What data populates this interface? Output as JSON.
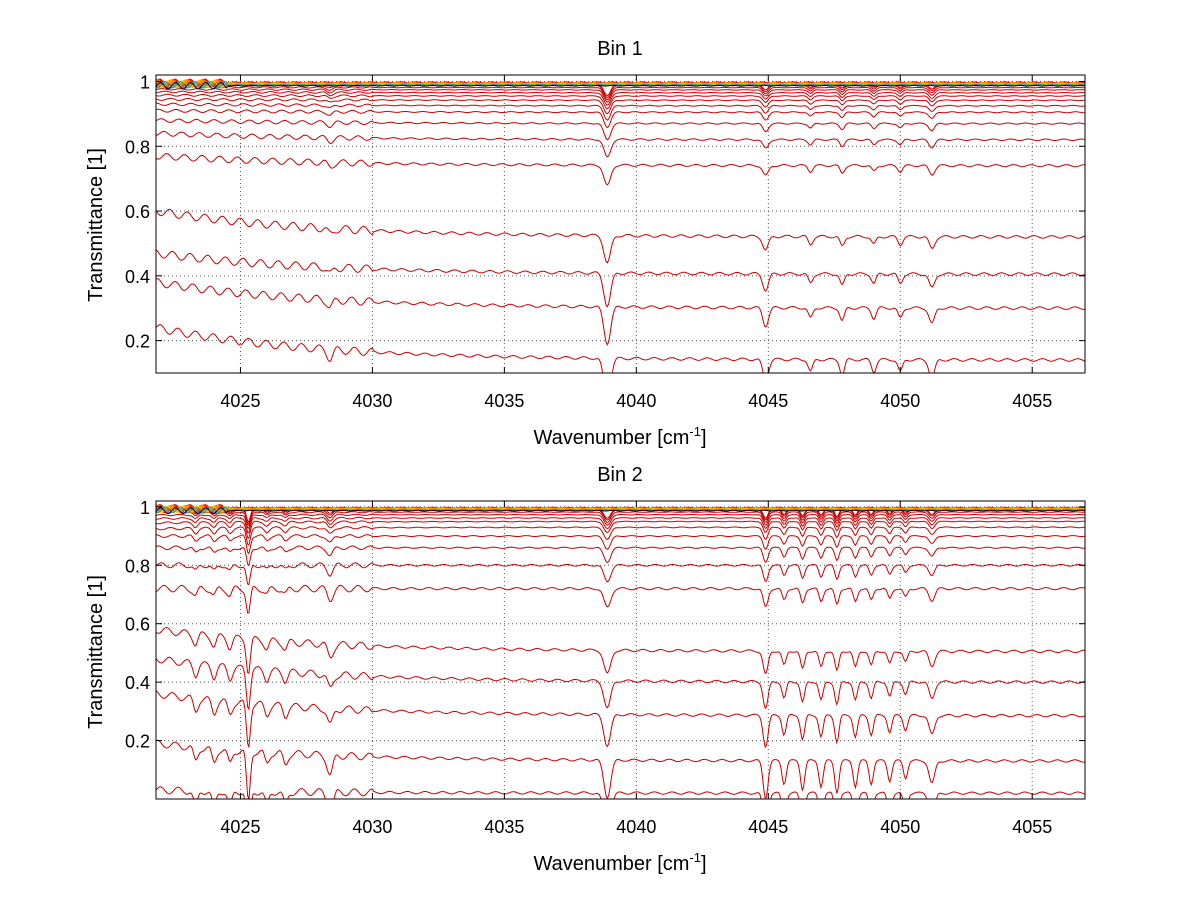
{
  "chart_data": [
    {
      "type": "line",
      "title": "Bin 1",
      "xlabel": "Wavenumber [cm",
      "xlabel_sup": "-1",
      "xlabel_end": "]",
      "ylabel": "Transmittance [1]",
      "xlim": [
        4021.8,
        4057.0
      ],
      "ylim": [
        0.1,
        1.02
      ],
      "xticks": [
        4025,
        4030,
        4035,
        4040,
        4045,
        4050,
        4055
      ],
      "xtick_labels": [
        "4025",
        "4030",
        "4035",
        "4040",
        "4045",
        "4050",
        "4055"
      ],
      "yticks": [
        0.2,
        0.4,
        0.6,
        0.8,
        1.0
      ],
      "ytick_labels": [
        "0.2",
        "0.4",
        "0.6",
        "0.8",
        "1"
      ],
      "grid": true,
      "grid_style": "dotted",
      "series_color": "#cc0000",
      "top_band_colors": [
        "#ff0000",
        "#ff6600",
        "#ff9900",
        "#ffcc00",
        "#33aa33",
        "#3399ff",
        "#000000"
      ],
      "series": [
        {
          "start": 0.24,
          "end": 0.14
        },
        {
          "start": 0.38,
          "end": 0.3
        },
        {
          "start": 0.47,
          "end": 0.405
        },
        {
          "start": 0.6,
          "end": 0.52
        },
        {
          "start": 0.77,
          "end": 0.74
        },
        {
          "start": 0.84,
          "end": 0.82
        },
        {
          "start": 0.88,
          "end": 0.87
        },
        {
          "start": 0.91,
          "end": 0.905
        },
        {
          "start": 0.93,
          "end": 0.925
        },
        {
          "start": 0.945,
          "end": 0.942
        },
        {
          "start": 0.958,
          "end": 0.955
        },
        {
          "start": 0.968,
          "end": 0.965
        },
        {
          "start": 0.976,
          "end": 0.974
        },
        {
          "start": 0.983,
          "end": 0.981
        },
        {
          "start": 0.989,
          "end": 0.987
        },
        {
          "start": 0.994,
          "end": 0.992
        }
      ],
      "absorption_lines": [
        {
          "x": 4028.4,
          "depth": 0.03,
          "width": 0.15
        },
        {
          "x": 4038.9,
          "depth": 0.14,
          "width": 0.18
        },
        {
          "x": 4044.9,
          "depth": 0.07,
          "width": 0.15
        },
        {
          "x": 4046.6,
          "depth": 0.04,
          "width": 0.12
        },
        {
          "x": 4047.8,
          "depth": 0.05,
          "width": 0.12
        },
        {
          "x": 4049.0,
          "depth": 0.04,
          "width": 0.12
        },
        {
          "x": 4050.0,
          "depth": 0.04,
          "width": 0.12
        },
        {
          "x": 4051.2,
          "depth": 0.06,
          "width": 0.15
        }
      ]
    },
    {
      "type": "line",
      "title": "Bin 2",
      "xlabel": "Wavenumber [cm",
      "xlabel_sup": "-1",
      "xlabel_end": "]",
      "ylabel": "Transmittance [1]",
      "xlim": [
        4021.8,
        4057.0
      ],
      "ylim": [
        0.0,
        1.02
      ],
      "xticks": [
        4025,
        4030,
        4035,
        4040,
        4045,
        4050,
        4055
      ],
      "xtick_labels": [
        "4025",
        "4030",
        "4035",
        "4040",
        "4045",
        "4050",
        "4055"
      ],
      "yticks": [
        0.2,
        0.4,
        0.6,
        0.8,
        1.0
      ],
      "ytick_labels": [
        "0.2",
        "0.4",
        "0.6",
        "0.8",
        "1"
      ],
      "grid": true,
      "grid_style": "dotted",
      "series_color": "#cc0000",
      "top_band_colors": [
        "#ff0000",
        "#ff6600",
        "#ff9900",
        "#ffcc00",
        "#33aa33",
        "#3399ff",
        "#000000"
      ],
      "series": [
        {
          "start": 0.03,
          "end": 0.02
        },
        {
          "start": 0.19,
          "end": 0.13
        },
        {
          "start": 0.36,
          "end": 0.285
        },
        {
          "start": 0.48,
          "end": 0.4
        },
        {
          "start": 0.58,
          "end": 0.505
        },
        {
          "start": 0.72,
          "end": 0.72
        },
        {
          "start": 0.8,
          "end": 0.8
        },
        {
          "start": 0.86,
          "end": 0.86
        },
        {
          "start": 0.9,
          "end": 0.9
        },
        {
          "start": 0.925,
          "end": 0.93
        },
        {
          "start": 0.945,
          "end": 0.95
        },
        {
          "start": 0.96,
          "end": 0.962
        },
        {
          "start": 0.972,
          "end": 0.973
        },
        {
          "start": 0.981,
          "end": 0.982
        },
        {
          "start": 0.988,
          "end": 0.989
        },
        {
          "start": 0.994,
          "end": 0.994
        }
      ],
      "absorption_lines": [
        {
          "x": 4023.3,
          "depth": 0.05,
          "width": 0.12
        },
        {
          "x": 4024.0,
          "depth": 0.05,
          "width": 0.12
        },
        {
          "x": 4024.6,
          "depth": 0.05,
          "width": 0.12
        },
        {
          "x": 4025.3,
          "depth": 0.18,
          "width": 0.1
        },
        {
          "x": 4026.0,
          "depth": 0.04,
          "width": 0.12
        },
        {
          "x": 4026.7,
          "depth": 0.04,
          "width": 0.12
        },
        {
          "x": 4028.4,
          "depth": 0.07,
          "width": 0.15
        },
        {
          "x": 4038.9,
          "depth": 0.13,
          "width": 0.18
        },
        {
          "x": 4044.9,
          "depth": 0.13,
          "width": 0.13
        },
        {
          "x": 4045.6,
          "depth": 0.08,
          "width": 0.11
        },
        {
          "x": 4046.3,
          "depth": 0.1,
          "width": 0.11
        },
        {
          "x": 4047.0,
          "depth": 0.09,
          "width": 0.11
        },
        {
          "x": 4047.6,
          "depth": 0.11,
          "width": 0.11
        },
        {
          "x": 4048.3,
          "depth": 0.09,
          "width": 0.11
        },
        {
          "x": 4048.9,
          "depth": 0.08,
          "width": 0.11
        },
        {
          "x": 4049.6,
          "depth": 0.07,
          "width": 0.11
        },
        {
          "x": 4050.2,
          "depth": 0.06,
          "width": 0.11
        },
        {
          "x": 4051.2,
          "depth": 0.08,
          "width": 0.15
        }
      ]
    }
  ]
}
